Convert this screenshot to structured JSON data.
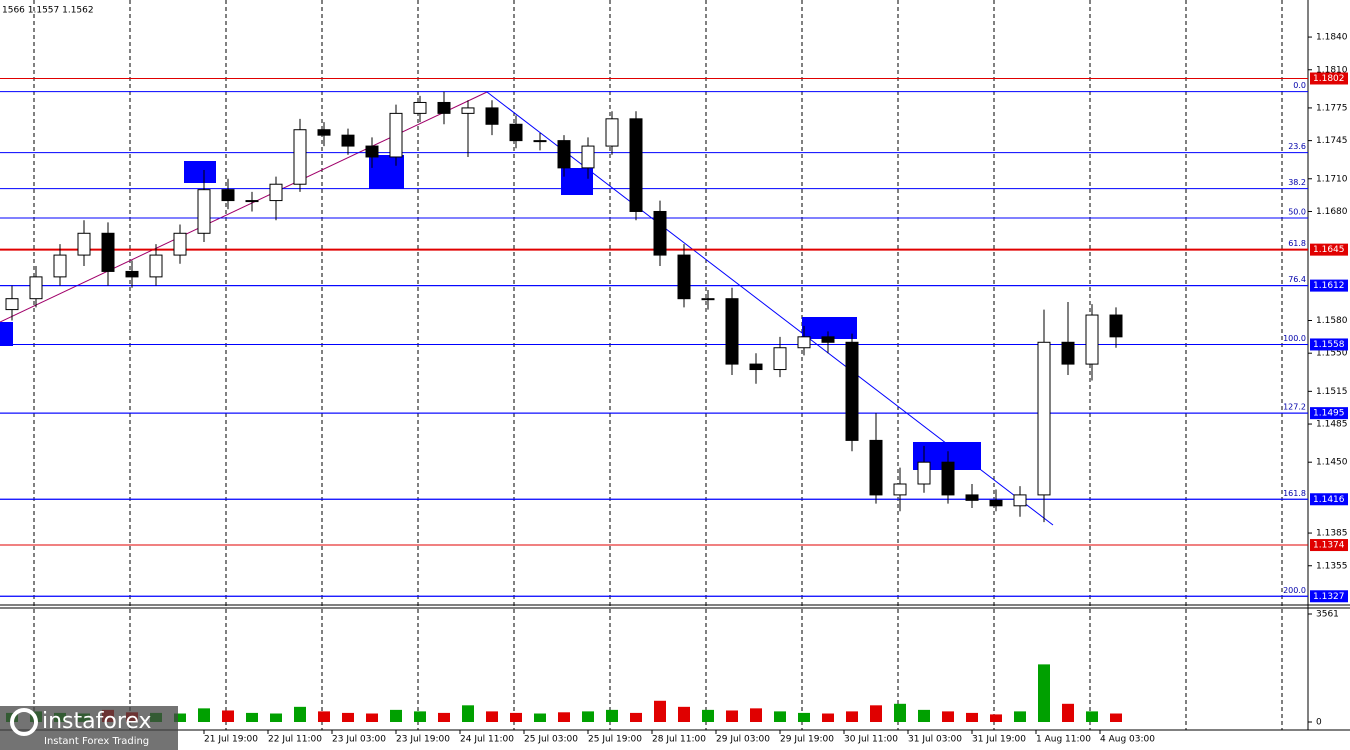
{
  "chart_data": {
    "type": "candlestick",
    "header": "1566 1.1557 1.1562",
    "watermark": "instaforex",
    "watermark_sub": "Instant Forex Trading",
    "x": [
      3,
      9,
      15,
      21,
      27,
      33,
      39,
      45,
      51,
      57,
      63,
      69,
      75,
      81,
      87,
      93,
      99,
      105,
      111,
      117,
      123,
      129,
      135,
      141,
      147,
      153,
      159,
      165,
      171,
      177,
      183,
      189,
      195,
      201,
      207,
      213,
      219,
      225,
      231,
      237,
      243,
      249,
      255,
      261,
      267,
      273,
      279
    ],
    "open": [
      1.159,
      1.16,
      1.162,
      1.164,
      1.166,
      1.1625,
      1.162,
      1.164,
      1.166,
      1.17,
      1.169,
      1.169,
      1.1705,
      1.1755,
      1.175,
      1.174,
      1.173,
      1.177,
      1.178,
      1.177,
      1.1775,
      1.176,
      1.1745,
      1.1745,
      1.172,
      1.174,
      1.1765,
      1.168,
      1.164,
      1.16,
      1.16,
      1.154,
      1.1535,
      1.1555,
      1.1565,
      1.156,
      1.147,
      1.142,
      1.143,
      1.145,
      1.142,
      1.1415,
      1.141,
      1.142,
      1.156,
      1.154,
      1.1585
    ],
    "high": [
      1.1612,
      1.163,
      1.165,
      1.1672,
      1.167,
      1.1635,
      1.165,
      1.1668,
      1.1718,
      1.171,
      1.1698,
      1.1712,
      1.1765,
      1.1762,
      1.1756,
      1.1748,
      1.1778,
      1.1786,
      1.179,
      1.1782,
      1.1782,
      1.1768,
      1.1752,
      1.175,
      1.1748,
      1.1772,
      1.1772,
      1.169,
      1.165,
      1.1608,
      1.161,
      1.155,
      1.1565,
      1.1575,
      1.157,
      1.1568,
      1.1495,
      1.1445,
      1.1465,
      1.146,
      1.143,
      1.1425,
      1.1428,
      1.159,
      1.1597,
      1.1595,
      1.1592
    ],
    "low": [
      1.158,
      1.1592,
      1.1612,
      1.163,
      1.1612,
      1.161,
      1.1612,
      1.1632,
      1.1652,
      1.1682,
      1.168,
      1.1672,
      1.1698,
      1.174,
      1.1732,
      1.172,
      1.1722,
      1.1762,
      1.176,
      1.173,
      1.175,
      1.1738,
      1.1736,
      1.1712,
      1.171,
      1.1732,
      1.1672,
      1.163,
      1.1592,
      1.159,
      1.153,
      1.1522,
      1.1528,
      1.1548,
      1.155,
      1.146,
      1.1412,
      1.1405,
      1.1422,
      1.1412,
      1.1408,
      1.1405,
      1.14,
      1.1395,
      1.153,
      1.1525,
      1.1555
    ],
    "close": [
      1.16,
      1.162,
      1.164,
      1.166,
      1.1625,
      1.162,
      1.164,
      1.166,
      1.17,
      1.169,
      1.169,
      1.1705,
      1.1755,
      1.175,
      1.174,
      1.173,
      1.177,
      1.178,
      1.177,
      1.1775,
      1.176,
      1.1745,
      1.1745,
      1.172,
      1.174,
      1.1765,
      1.168,
      1.164,
      1.16,
      1.16,
      1.154,
      1.1535,
      1.1555,
      1.1565,
      1.156,
      1.147,
      1.142,
      1.143,
      1.145,
      1.142,
      1.1415,
      1.141,
      1.142,
      1.156,
      1.154,
      1.1585,
      1.1565
    ],
    "volume": [
      300,
      350,
      300,
      280,
      400,
      320,
      300,
      280,
      450,
      380,
      300,
      280,
      500,
      350,
      300,
      280,
      400,
      350,
      300,
      550,
      350,
      300,
      280,
      320,
      350,
      400,
      300,
      700,
      500,
      400,
      380,
      450,
      350,
      300,
      280,
      350,
      550,
      600,
      400,
      350,
      300,
      250,
      350,
      1900,
      600,
      350,
      280
    ],
    "xlim": [
      0,
      327
    ],
    "xticks": [
      {
        "value": 51,
        "label": "21 Jul 19:00"
      },
      {
        "value": 67,
        "label": "22 Jul 11:00"
      },
      {
        "value": 83,
        "label": "23 Jul 03:00"
      },
      {
        "value": 99,
        "label": "23 Jul 19:00"
      },
      {
        "value": 115,
        "label": "24 Jul 11:00"
      },
      {
        "value": 131,
        "label": "25 Jul 03:00"
      },
      {
        "value": 147,
        "label": "25 Jul 19:00"
      },
      {
        "value": 163,
        "label": "28 Jul 11:00"
      },
      {
        "value": 179,
        "label": "29 Jul 03:00"
      },
      {
        "value": 195,
        "label": "29 Jul 19:00"
      },
      {
        "value": 211,
        "label": "30 Jul 11:00"
      },
      {
        "value": 227,
        "label": "31 Jul 03:00"
      },
      {
        "value": 243,
        "label": "31 Jul 19:00"
      },
      {
        "value": 259,
        "label": "1 Aug 11:00"
      },
      {
        "value": 275,
        "label": "4 Aug 03:00"
      }
    ],
    "ylim": [
      1.1319,
      1.1874
    ],
    "yticks": [
      {
        "value": 1.184,
        "label": "1.1840"
      },
      {
        "value": 1.181,
        "label": "1.1810"
      },
      {
        "value": 1.1775,
        "label": "1.1775"
      },
      {
        "value": 1.1745,
        "label": "1.1745"
      },
      {
        "value": 1.171,
        "label": "1.1710"
      },
      {
        "value": 1.168,
        "label": "1.1680"
      },
      {
        "value": 1.158,
        "label": "1.1580"
      },
      {
        "value": 1.155,
        "label": "1.1550"
      },
      {
        "value": 1.1515,
        "label": "1.1515"
      },
      {
        "value": 1.1485,
        "label": "1.1485"
      },
      {
        "value": 1.145,
        "label": "1.1450"
      },
      {
        "value": 1.1385,
        "label": "1.1385"
      },
      {
        "value": 1.1355,
        "label": "1.1355"
      }
    ],
    "vlim": [
      0,
      3561
    ],
    "vticks": [
      3561,
      0
    ],
    "up_color": "#00a000",
    "down_color": "#e00000",
    "levels": [
      {
        "value": 1.1802,
        "label": "1.1802",
        "color": "#e00000"
      },
      {
        "value": 1.1645,
        "label": "1.1645",
        "color": "#e00000"
      },
      {
        "value": 1.1612,
        "label": "1.1612",
        "color": "#0000ff"
      },
      {
        "value": 1.1558,
        "label": "1.1558",
        "color": "#0000ff"
      },
      {
        "value": 1.1495,
        "label": "1.1495",
        "color": "#0000ff"
      },
      {
        "value": 1.1416,
        "label": "1.1416",
        "color": "#0000ff"
      },
      {
        "value": 1.1374,
        "label": "1.1374",
        "color": "#e00000"
      },
      {
        "value": 1.1327,
        "label": "1.1327",
        "color": "#0000ff"
      }
    ],
    "fib_levels": [
      {
        "value": 1.179,
        "label": "0.0"
      },
      {
        "value": 1.1734,
        "label": "23.6"
      },
      {
        "value": 1.1701,
        "label": "38.2"
      },
      {
        "value": 1.1674,
        "label": "50.0"
      },
      {
        "value": 1.1645,
        "label": "61.8"
      },
      {
        "value": 1.1612,
        "label": "76.4"
      },
      {
        "value": 1.1558,
        "label": "100.0"
      },
      {
        "value": 1.1495,
        "label": "127.2"
      },
      {
        "value": 1.1416,
        "label": "161.8"
      },
      {
        "value": 1.1327,
        "label": "200.0"
      }
    ]
  }
}
